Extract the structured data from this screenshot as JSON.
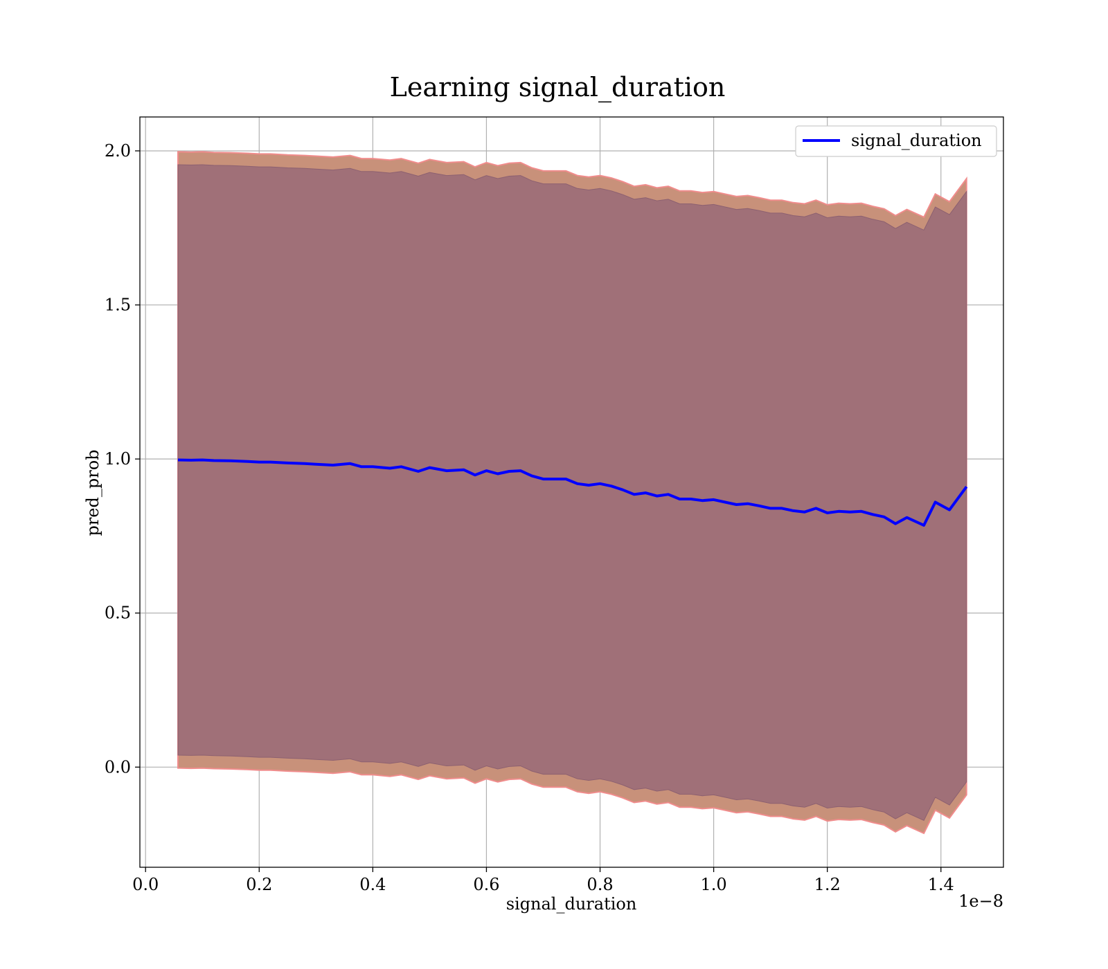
{
  "chart_data": {
    "type": "line",
    "title": "Learning signal_duration",
    "xlabel": "signal_duration",
    "ylabel": "pred_prob",
    "x_offset_label": "1e−8",
    "xlim": [
      -0.01,
      1.51
    ],
    "ylim": [
      -0.325,
      2.11
    ],
    "x_ticks": [
      {
        "value": 0.0,
        "label": "0.0"
      },
      {
        "value": 0.2,
        "label": "0.2"
      },
      {
        "value": 0.4,
        "label": "0.4"
      },
      {
        "value": 0.6,
        "label": "0.6"
      },
      {
        "value": 0.8,
        "label": "0.8"
      },
      {
        "value": 1.0,
        "label": "1.0"
      },
      {
        "value": 1.2,
        "label": "1.2"
      },
      {
        "value": 1.4,
        "label": "1.4"
      }
    ],
    "y_ticks": [
      {
        "value": 0.0,
        "label": "0.0"
      },
      {
        "value": 0.5,
        "label": "0.5"
      },
      {
        "value": 1.0,
        "label": "1.0"
      },
      {
        "value": 1.5,
        "label": "1.5"
      },
      {
        "value": 2.0,
        "label": "2.0"
      }
    ],
    "grid": true,
    "legend_position": "top-right",
    "series": [
      {
        "name": "signal_duration",
        "color": "#0000ff",
        "x": [
          0.057,
          0.08,
          0.1,
          0.12,
          0.15,
          0.18,
          0.2,
          0.22,
          0.25,
          0.28,
          0.3,
          0.33,
          0.36,
          0.38,
          0.4,
          0.43,
          0.45,
          0.48,
          0.5,
          0.53,
          0.56,
          0.58,
          0.6,
          0.62,
          0.64,
          0.66,
          0.68,
          0.7,
          0.72,
          0.74,
          0.76,
          0.78,
          0.8,
          0.82,
          0.84,
          0.86,
          0.88,
          0.9,
          0.92,
          0.94,
          0.96,
          0.98,
          1.0,
          1.02,
          1.04,
          1.06,
          1.08,
          1.1,
          1.12,
          1.14,
          1.16,
          1.18,
          1.2,
          1.22,
          1.24,
          1.26,
          1.28,
          1.3,
          1.32,
          1.34,
          1.37,
          1.39,
          1.415,
          1.445
        ],
        "y": [
          0.997,
          0.996,
          0.997,
          0.995,
          0.994,
          0.992,
          0.99,
          0.99,
          0.987,
          0.985,
          0.983,
          0.98,
          0.985,
          0.975,
          0.975,
          0.97,
          0.975,
          0.96,
          0.972,
          0.962,
          0.965,
          0.948,
          0.962,
          0.952,
          0.96,
          0.962,
          0.945,
          0.935,
          0.935,
          0.935,
          0.92,
          0.915,
          0.92,
          0.912,
          0.9,
          0.885,
          0.89,
          0.88,
          0.885,
          0.87,
          0.87,
          0.865,
          0.868,
          0.86,
          0.852,
          0.855,
          0.848,
          0.84,
          0.84,
          0.832,
          0.828,
          0.84,
          0.825,
          0.83,
          0.828,
          0.83,
          0.82,
          0.812,
          0.79,
          0.81,
          0.785,
          0.86,
          0.835,
          0.91
        ]
      }
    ],
    "band": {
      "fill_color": "#a07078",
      "outer_color": "#c8917a",
      "outer_edge_color": "#f08c8c",
      "inner_halfwidth": 0.958,
      "outer_halfwidth": 1.0
    }
  }
}
